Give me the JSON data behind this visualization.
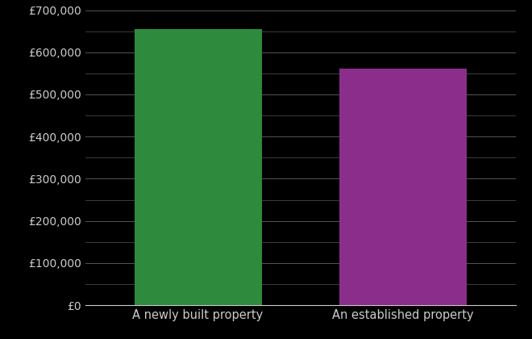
{
  "categories": [
    "A newly built property",
    "An established property"
  ],
  "values": [
    655000,
    562000
  ],
  "bar_colors": [
    "#2e8b3e",
    "#8b2e8b"
  ],
  "background_color": "#000000",
  "text_color": "#cccccc",
  "grid_color": "#555555",
  "ylim": [
    0,
    700000
  ],
  "ytick_major_step": 100000,
  "ytick_minor_step": 50000,
  "bar_width": 0.62,
  "figsize": [
    6.6,
    4.2
  ],
  "dpi": 100
}
